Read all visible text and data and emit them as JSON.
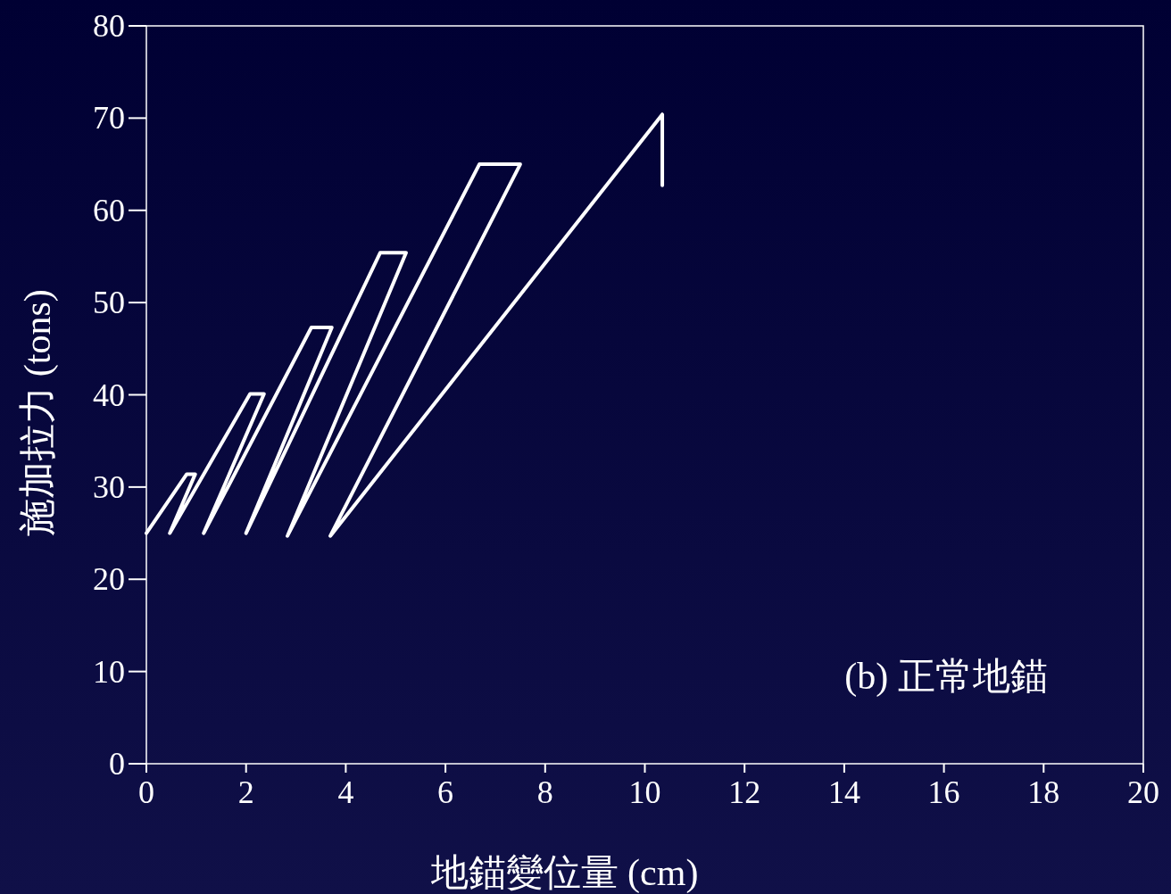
{
  "chart_data": {
    "type": "line",
    "xlabel": "地錨變位量 (cm)",
    "ylabel": "施加拉力 (tons)",
    "annotations": [
      "(b) 正常地錨"
    ],
    "series": [
      {
        "color": "#ffffff",
        "x": [
          0,
          0.81,
          0.98,
          0.47,
          2.08,
          2.36,
          1.15,
          3.31,
          3.72,
          2.0,
          4.69,
          5.21,
          2.83,
          6.68,
          7.5,
          3.69,
          10.35,
          10.35
        ],
        "values": [
          25,
          31.4,
          31.4,
          25,
          40.1,
          40.1,
          25,
          47.3,
          47.3,
          25,
          55.4,
          55.4,
          24.7,
          65.0,
          65.0,
          24.7,
          70.4,
          62.7
        ]
      }
    ],
    "xlim": [
      0,
      20
    ],
    "xticks": [
      0,
      2,
      4,
      6,
      8,
      10,
      12,
      14,
      16,
      18,
      20
    ],
    "ylim": [
      0,
      80
    ],
    "yticks": [
      0,
      10,
      20,
      30,
      40,
      50,
      60,
      70,
      80
    ],
    "grid": false,
    "marker": "none",
    "line_style": "solid"
  }
}
